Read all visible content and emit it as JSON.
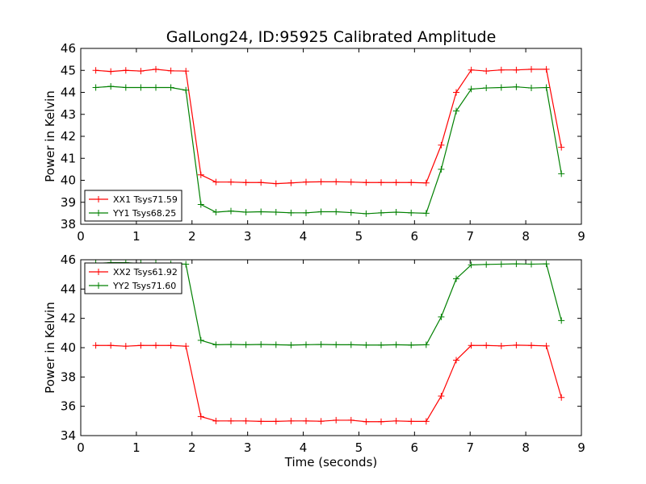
{
  "figure_title": "GalLong24, ID:95925 Calibrated Amplitude",
  "colors": {
    "xx": "#ff0000",
    "yy": "#008000",
    "axis": "#000000",
    "background": "#ffffff"
  },
  "chart_data": [
    {
      "type": "line",
      "title": "GalLong24, ID:95925 Calibrated Amplitude",
      "xlabel": "",
      "ylabel": "Power in Kelvin",
      "xlim": [
        0,
        9
      ],
      "ylim": [
        38,
        46
      ],
      "xticks": [
        0,
        1,
        2,
        3,
        4,
        5,
        6,
        7,
        8,
        9
      ],
      "yticks": [
        38,
        39,
        40,
        41,
        42,
        43,
        44,
        45,
        46
      ],
      "grid": false,
      "legend": "lower-left",
      "x": [
        0.27,
        0.54,
        0.81,
        1.08,
        1.35,
        1.62,
        1.89,
        2.16,
        2.43,
        2.7,
        2.97,
        3.24,
        3.51,
        3.78,
        4.05,
        4.32,
        4.59,
        4.86,
        5.13,
        5.4,
        5.67,
        5.94,
        6.21,
        6.48,
        6.75,
        7.02,
        7.29,
        7.56,
        7.83,
        8.1,
        8.37,
        8.64
      ],
      "series": [
        {
          "name": "XX1 Tsys71.59",
          "color": "#ff0000",
          "values": [
            45.0,
            44.95,
            45.0,
            44.97,
            45.05,
            44.98,
            44.97,
            40.25,
            39.92,
            39.92,
            39.9,
            39.9,
            39.85,
            39.88,
            39.92,
            39.93,
            39.93,
            39.92,
            39.9,
            39.9,
            39.9,
            39.9,
            39.88,
            41.6,
            44.0,
            45.02,
            44.97,
            45.02,
            45.02,
            45.05,
            45.05,
            41.5
          ]
        },
        {
          "name": "YY1 Tsys68.25",
          "color": "#008000",
          "values": [
            44.22,
            44.27,
            44.22,
            44.22,
            44.22,
            44.22,
            44.1,
            38.9,
            38.55,
            38.6,
            38.55,
            38.57,
            38.55,
            38.52,
            38.52,
            38.57,
            38.57,
            38.53,
            38.48,
            38.52,
            38.55,
            38.52,
            38.5,
            40.5,
            43.15,
            44.15,
            44.2,
            44.22,
            44.25,
            44.2,
            44.22,
            40.3
          ]
        }
      ]
    },
    {
      "type": "line",
      "title": "",
      "xlabel": "Time (seconds)",
      "ylabel": "Power in Kelvin",
      "xlim": [
        0,
        9
      ],
      "ylim": [
        34,
        46
      ],
      "xticks": [
        0,
        1,
        2,
        3,
        4,
        5,
        6,
        7,
        8,
        9
      ],
      "yticks": [
        34,
        36,
        38,
        40,
        42,
        44,
        46
      ],
      "grid": false,
      "legend": "upper-left",
      "x": [
        0.27,
        0.54,
        0.81,
        1.08,
        1.35,
        1.62,
        1.89,
        2.16,
        2.43,
        2.7,
        2.97,
        3.24,
        3.51,
        3.78,
        4.05,
        4.32,
        4.59,
        4.86,
        5.13,
        5.4,
        5.67,
        5.94,
        6.21,
        6.48,
        6.75,
        7.02,
        7.29,
        7.56,
        7.83,
        8.1,
        8.37,
        8.64
      ],
      "series": [
        {
          "name": "XX2 Tsys61.92",
          "color": "#ff0000",
          "values": [
            40.15,
            40.15,
            40.1,
            40.15,
            40.15,
            40.15,
            40.1,
            35.3,
            35.0,
            35.0,
            35.0,
            34.97,
            34.97,
            35.0,
            35.0,
            34.98,
            35.05,
            35.05,
            34.95,
            34.95,
            35.0,
            34.97,
            34.97,
            36.7,
            39.15,
            40.15,
            40.15,
            40.12,
            40.17,
            40.15,
            40.12,
            36.6
          ]
        },
        {
          "name": "YY2 Tsys71.60",
          "color": "#008000",
          "values": [
            45.75,
            45.8,
            45.8,
            45.75,
            45.75,
            45.72,
            45.7,
            40.5,
            40.2,
            40.22,
            40.2,
            40.22,
            40.2,
            40.18,
            40.2,
            40.22,
            40.2,
            40.2,
            40.18,
            40.18,
            40.2,
            40.18,
            40.2,
            42.1,
            44.7,
            45.65,
            45.68,
            45.7,
            45.72,
            45.7,
            45.72,
            41.85
          ]
        }
      ]
    }
  ]
}
